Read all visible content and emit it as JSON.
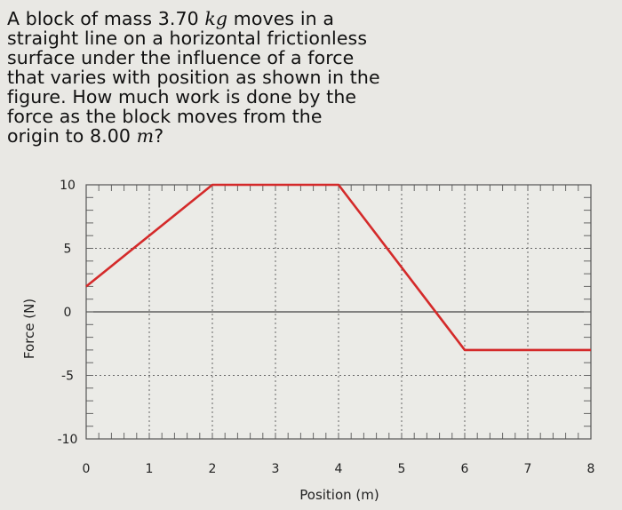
{
  "question": {
    "lines": [
      "A block of mass 3.70 kg moves in a",
      "straight line on a horizontal frictionless",
      "surface under the influence of a force",
      "that varies with position as shown in the",
      "figure. How much work is done by the",
      "force as the block moves from the",
      "origin to 8.00 m?"
    ]
  },
  "chart_data": {
    "type": "line",
    "xlabel": "Position (m)",
    "ylabel": "Force (N)",
    "xlim": [
      0,
      8
    ],
    "ylim": [
      -10,
      10
    ],
    "x_ticks": [
      0,
      1,
      2,
      3,
      4,
      5,
      6,
      7,
      8
    ],
    "y_ticks": [
      10,
      5,
      0,
      -5,
      -10
    ],
    "grid": true,
    "series": [
      {
        "color": "#d42a2a",
        "points": [
          [
            0,
            2
          ],
          [
            2,
            10
          ],
          [
            4,
            10
          ],
          [
            6,
            -3
          ],
          [
            8,
            -3
          ]
        ]
      }
    ]
  }
}
